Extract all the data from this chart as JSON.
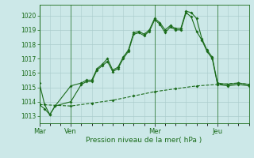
{
  "title": "",
  "xlabel": "Pression niveau de la mer( hPa )",
  "ylim": [
    1012.5,
    1020.75
  ],
  "yticks": [
    1013,
    1014,
    1015,
    1016,
    1017,
    1018,
    1019,
    1020
  ],
  "bg_color": "#cce8e8",
  "line_color": "#1a6b1a",
  "grid_color": "#aacccc",
  "day_labels": [
    "Mar",
    "Ven",
    "Mer",
    "Jeu"
  ],
  "day_positions": [
    0,
    36,
    132,
    204
  ],
  "vline_positions": [
    0,
    36,
    132,
    204
  ],
  "total_points": 240,
  "line1_x": [
    0,
    6,
    12,
    18,
    36,
    48,
    54,
    60,
    66,
    72,
    78,
    84,
    90,
    96,
    102,
    108,
    114,
    120,
    126,
    132,
    138,
    144,
    150,
    156,
    162,
    168,
    174,
    180,
    186,
    192,
    198,
    204,
    216,
    228,
    240
  ],
  "line1_y": [
    1015.3,
    1013.8,
    1013.1,
    1013.7,
    1015.1,
    1015.3,
    1015.5,
    1015.5,
    1016.3,
    1016.6,
    1017.0,
    1016.2,
    1016.4,
    1017.1,
    1017.6,
    1018.8,
    1018.9,
    1018.7,
    1019.0,
    1019.8,
    1019.5,
    1019.0,
    1019.3,
    1019.1,
    1019.1,
    1020.3,
    1020.2,
    1019.8,
    1018.4,
    1017.6,
    1017.1,
    1015.3,
    1015.2,
    1015.3,
    1015.2
  ],
  "line2_x": [
    0,
    6,
    12,
    18,
    36,
    48,
    54,
    60,
    66,
    72,
    78,
    84,
    90,
    96,
    102,
    108,
    114,
    120,
    126,
    132,
    138,
    144,
    150,
    156,
    162,
    168,
    174,
    180,
    186,
    192,
    198,
    204,
    216,
    228,
    240
  ],
  "line2_y": [
    1013.8,
    1013.5,
    1013.1,
    1013.7,
    1014.0,
    1015.2,
    1015.4,
    1015.4,
    1016.2,
    1016.5,
    1016.8,
    1016.1,
    1016.3,
    1017.0,
    1017.5,
    1018.7,
    1018.8,
    1018.6,
    1018.9,
    1019.7,
    1019.4,
    1018.8,
    1019.2,
    1019.0,
    1019.0,
    1020.2,
    1019.9,
    1018.9,
    1018.3,
    1017.5,
    1017.0,
    1015.2,
    1015.1,
    1015.2,
    1015.1
  ],
  "line3_x": [
    0,
    36,
    60,
    84,
    108,
    132,
    156,
    180,
    204,
    228,
    240
  ],
  "line3_y": [
    1013.8,
    1013.7,
    1013.9,
    1014.1,
    1014.4,
    1014.7,
    1014.9,
    1015.1,
    1015.2,
    1015.3,
    1015.2
  ]
}
